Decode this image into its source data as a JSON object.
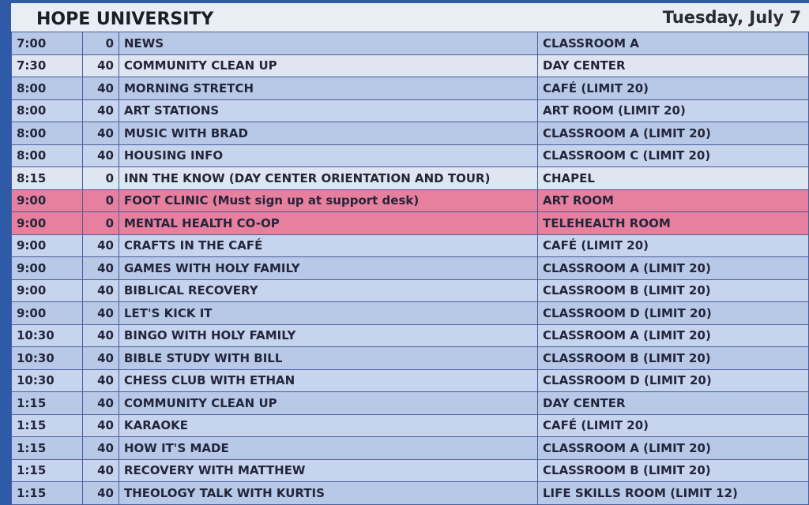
{
  "header": {
    "title": "HOPE UNIVERSITY",
    "date": "Tuesday, July 7"
  },
  "table": {
    "rows": [
      [
        "7:00",
        0,
        "NEWS",
        "CLASSROOM A"
      ],
      [
        "7:30",
        40,
        "COMMUNITY CLEAN UP",
        "DAY CENTER"
      ],
      [
        "8:00",
        40,
        "MORNING STRETCH",
        "CAFÉ (LIMIT 20)"
      ],
      [
        "8:00",
        40,
        "ART STATIONS",
        "ART ROOM (LIMIT 20)"
      ],
      [
        "8:00",
        40,
        "MUSIC WITH BRAD",
        "CLASSROOM A  (LIMIT 20)"
      ],
      [
        "8:00",
        40,
        "HOUSING INFO",
        "CLASSROOM C (LIMIT 20)"
      ],
      [
        "8:15",
        0,
        "INN THE KNOW (DAY CENTER ORIENTATION AND TOUR)",
        "CHAPEL"
      ],
      [
        "9:00",
        0,
        "FOOT CLINIC (Must sign up at support desk)",
        "ART ROOM"
      ],
      [
        "9:00",
        0,
        "MENTAL HEALTH CO-OP",
        "TELEHEALTH ROOM"
      ],
      [
        "9:00",
        40,
        "CRAFTS IN THE CAFÉ",
        "CAFÉ (LIMIT 20)"
      ],
      [
        "9:00",
        40,
        "GAMES WITH HOLY FAMILY",
        "CLASSROOM A (LIMIT 20)"
      ],
      [
        "9:00",
        40,
        "BIBLICAL RECOVERY",
        "CLASSROOM B (LIMIT 20)"
      ],
      [
        "9:00",
        40,
        "LET'S KICK IT",
        "CLASSROOM D (LIMIT 20)"
      ],
      [
        "10:30",
        40,
        "BINGO WITH HOLY FAMILY",
        "CLASSROOM A (LIMIT 20)"
      ],
      [
        "10:30",
        40,
        "BIBLE STUDY WITH BILL",
        "CLASSROOM B (LIMIT 20)"
      ],
      [
        "10:30",
        40,
        "CHESS CLUB WITH ETHAN",
        "CLASSROOM D (LIMIT 20)"
      ],
      [
        "1:15",
        40,
        "COMMUNITY CLEAN UP",
        "DAY CENTER"
      ],
      [
        "1:15",
        40,
        "KARAOKE",
        "CAFÉ (LIMIT 20)"
      ],
      [
        "1:15",
        40,
        "HOW IT'S MADE",
        "CLASSROOM A (LIMIT 20)"
      ],
      [
        "1:15",
        40,
        "RECOVERY WITH MATTHEW",
        "CLASSROOM B (LIMIT 20)"
      ],
      [
        "1:15",
        40,
        "THEOLOGY TALK WITH KURTIS",
        "LIFE SKILLS ROOM (LIMIT 12)"
      ]
    ]
  }
}
